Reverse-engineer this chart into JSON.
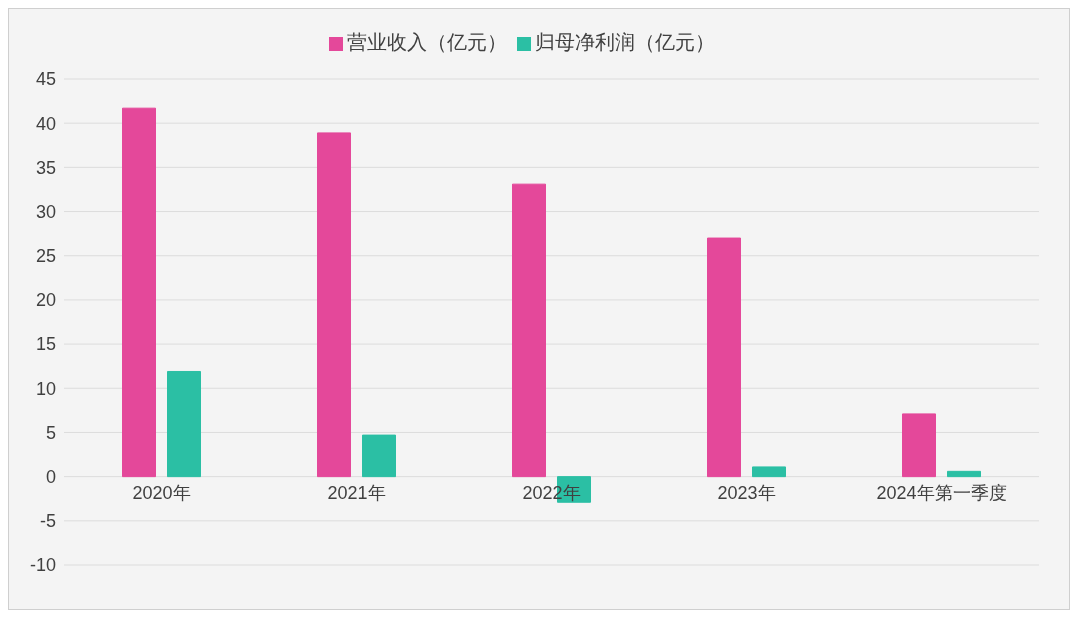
{
  "chart_data": {
    "type": "bar",
    "categories": [
      "2020年",
      "2021年",
      "2022年",
      "2023年",
      "2024年第一季度"
    ],
    "series": [
      {
        "name": "营业收入（亿元）",
        "color": "#e4489a",
        "values": [
          41.7,
          38.9,
          33.1,
          27.0,
          7.1
        ]
      },
      {
        "name": "归母净利润（亿元）",
        "color": "#2bbfa4",
        "values": [
          11.9,
          4.7,
          -2.9,
          1.1,
          0.6
        ]
      }
    ],
    "ylim": [
      -10,
      45
    ],
    "yticks": [
      -10,
      -5,
      0,
      5,
      10,
      15,
      20,
      25,
      30,
      35,
      40,
      45
    ],
    "grid": "y",
    "legend": "top"
  }
}
